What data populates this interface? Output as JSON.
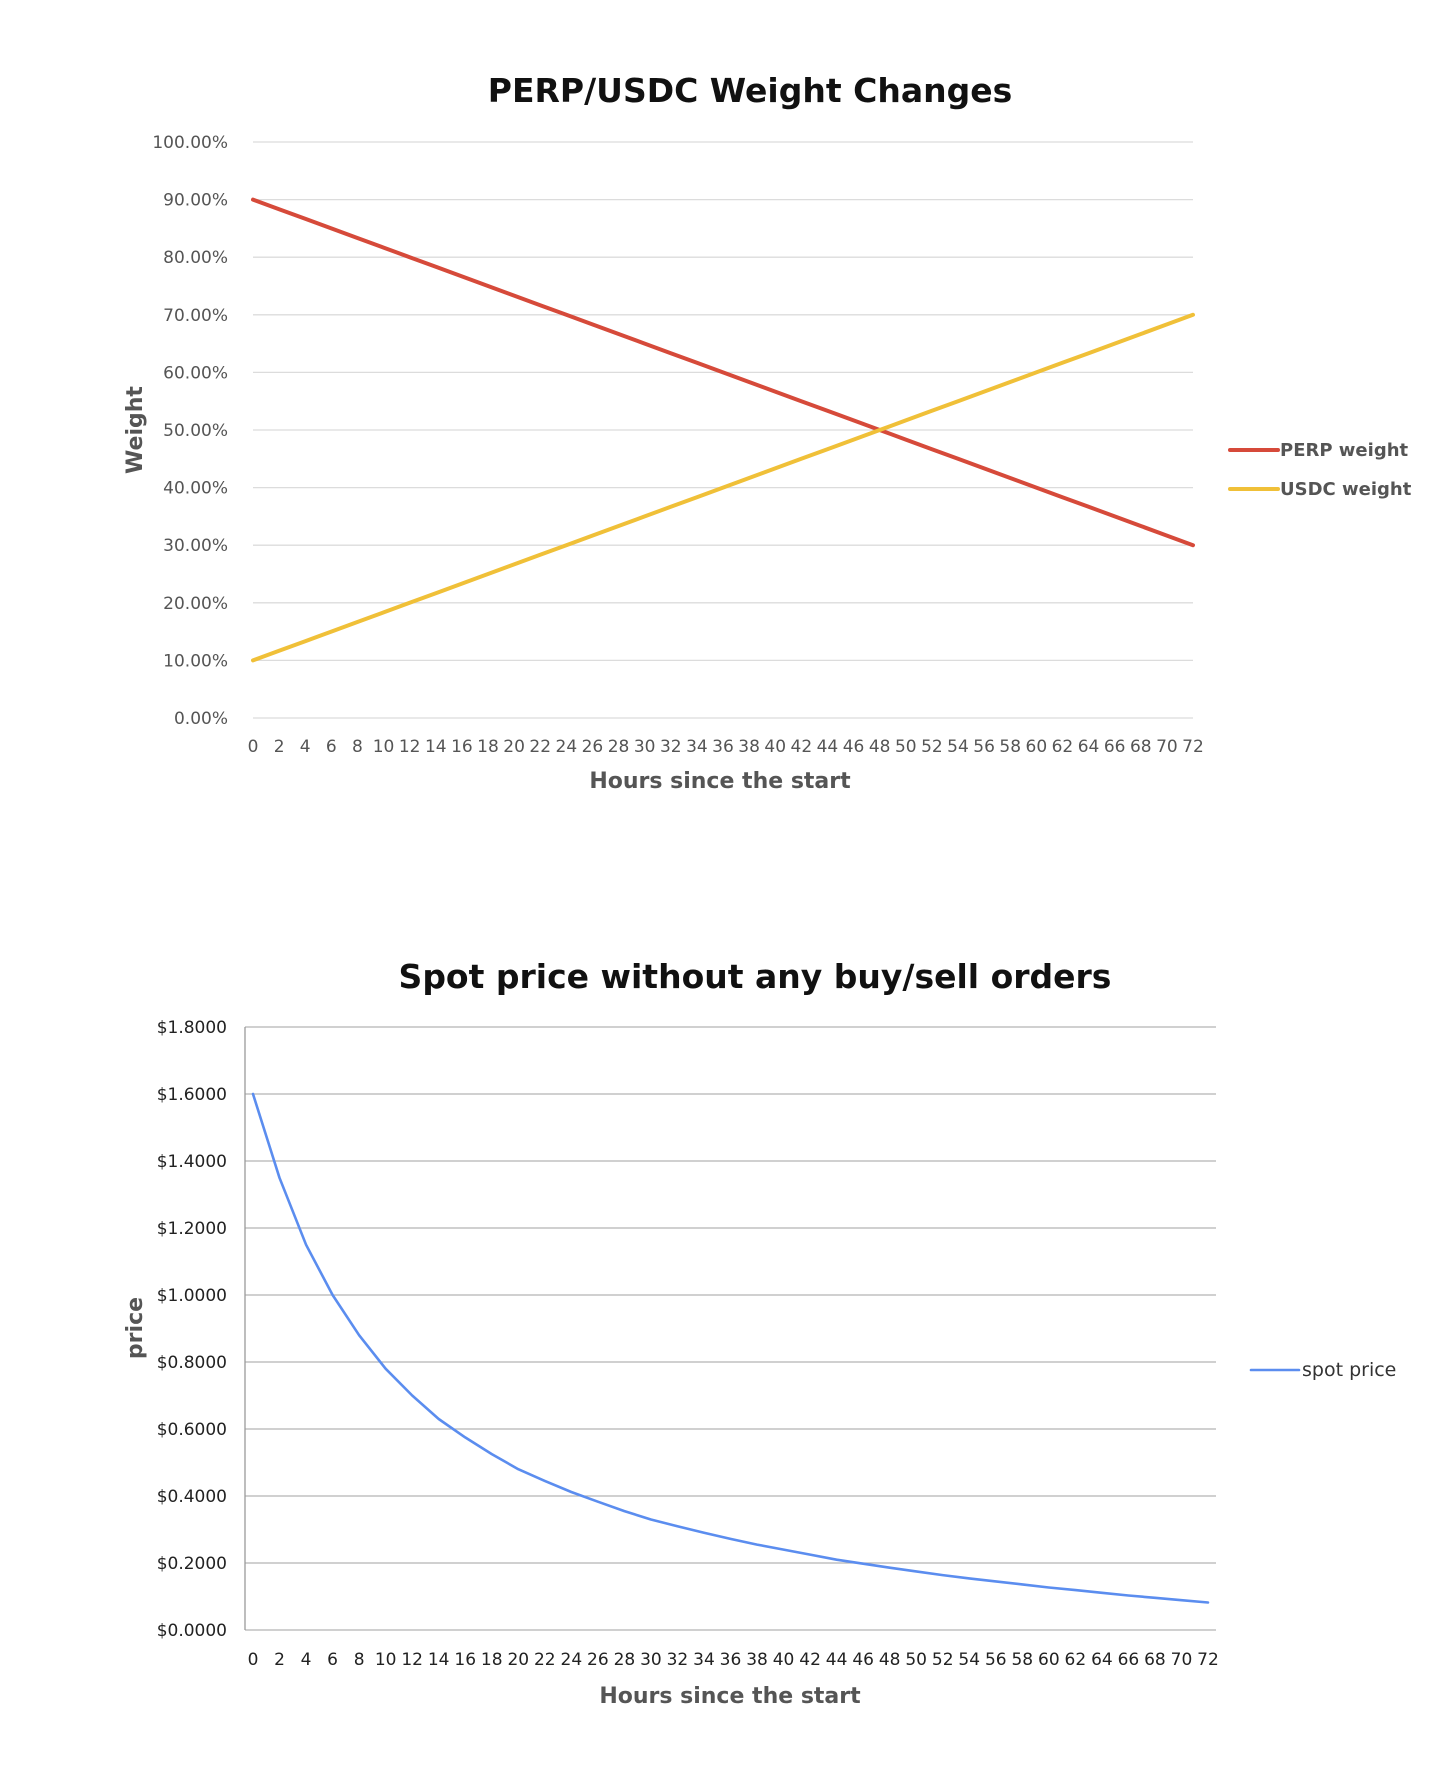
{
  "chart_data": [
    {
      "type": "line",
      "title": "PERP/USDC Weight Changes",
      "xlabel": "Hours since the start",
      "ylabel": "Weight",
      "x": [
        0,
        2,
        4,
        6,
        8,
        10,
        12,
        14,
        16,
        18,
        20,
        22,
        24,
        26,
        28,
        30,
        32,
        34,
        36,
        38,
        40,
        42,
        44,
        46,
        48,
        50,
        52,
        54,
        56,
        58,
        60,
        62,
        64,
        66,
        68,
        70,
        72
      ],
      "x_tick_labels": [
        "0",
        "2",
        "4",
        "6",
        "8",
        "10",
        "12",
        "14",
        "16",
        "18",
        "20",
        "22",
        "24",
        "26",
        "28",
        "30",
        "32",
        "34",
        "36",
        "38",
        "40",
        "42",
        "44",
        "46",
        "48",
        "50",
        "52",
        "54",
        "56",
        "58",
        "60",
        "62",
        "64",
        "66",
        "68",
        "70",
        "72"
      ],
      "y_tick_labels": [
        "0.00%",
        "10.00%",
        "20.00%",
        "30.00%",
        "40.00%",
        "50.00%",
        "60.00%",
        "70.00%",
        "80.00%",
        "90.00%",
        "100.00%"
      ],
      "ylim": [
        0,
        1
      ],
      "grid": true,
      "legend_position": "right",
      "series": [
        {
          "name": "PERP weight",
          "color": "#d64a3a",
          "values": [
            0.9,
            0.8833,
            0.8667,
            0.85,
            0.8333,
            0.8167,
            0.8,
            0.7833,
            0.7667,
            0.75,
            0.7333,
            0.7167,
            0.7,
            0.6833,
            0.6667,
            0.65,
            0.6333,
            0.6167,
            0.6,
            0.5833,
            0.5667,
            0.55,
            0.5333,
            0.5167,
            0.5,
            0.4833,
            0.4667,
            0.45,
            0.4333,
            0.4167,
            0.4,
            0.3833,
            0.3667,
            0.35,
            0.3333,
            0.3167,
            0.3
          ]
        },
        {
          "name": "USDC weight",
          "color": "#f0c038",
          "values": [
            0.1,
            0.1167,
            0.1333,
            0.15,
            0.1667,
            0.1833,
            0.2,
            0.2167,
            0.2333,
            0.25,
            0.2667,
            0.2833,
            0.3,
            0.3167,
            0.3333,
            0.35,
            0.3667,
            0.3833,
            0.4,
            0.4167,
            0.4333,
            0.45,
            0.4667,
            0.4833,
            0.5,
            0.5167,
            0.5333,
            0.55,
            0.5667,
            0.5833,
            0.6,
            0.6167,
            0.6333,
            0.65,
            0.6667,
            0.6833,
            0.7
          ]
        }
      ]
    },
    {
      "type": "line",
      "title": "Spot price without any buy/sell orders",
      "xlabel": "Hours since the start",
      "ylabel": "price",
      "x": [
        0,
        2,
        4,
        6,
        8,
        10,
        12,
        14,
        16,
        18,
        20,
        22,
        24,
        26,
        28,
        30,
        32,
        34,
        36,
        38,
        40,
        42,
        44,
        46,
        48,
        50,
        52,
        54,
        56,
        58,
        60,
        62,
        64,
        66,
        68,
        70,
        72
      ],
      "x_tick_labels": [
        "0",
        "2",
        "4",
        "6",
        "8",
        "10",
        "12",
        "14",
        "16",
        "18",
        "20",
        "22",
        "24",
        "26",
        "28",
        "30",
        "32",
        "34",
        "36",
        "38",
        "40",
        "42",
        "44",
        "46",
        "48",
        "50",
        "52",
        "54",
        "56",
        "58",
        "60",
        "62",
        "64",
        "66",
        "68",
        "70",
        "72"
      ],
      "y_tick_labels": [
        "$0.0000",
        "$0.2000",
        "$0.4000",
        "$0.6000",
        "$0.8000",
        "$1.0000",
        "$1.2000",
        "$1.4000",
        "$1.6000",
        "$1.8000"
      ],
      "ylim": [
        0,
        1.8
      ],
      "grid": true,
      "legend_position": "right",
      "series": [
        {
          "name": "spot price",
          "color": "#5b8def",
          "values": [
            1.6,
            1.35,
            1.15,
            1.0,
            0.88,
            0.78,
            0.7,
            0.63,
            0.575,
            0.525,
            0.48,
            0.445,
            0.412,
            0.383,
            0.355,
            0.33,
            0.31,
            0.29,
            0.272,
            0.255,
            0.24,
            0.225,
            0.21,
            0.198,
            0.186,
            0.175,
            0.164,
            0.154,
            0.145,
            0.136,
            0.127,
            0.119,
            0.111,
            0.103,
            0.096,
            0.089,
            0.082
          ]
        }
      ]
    }
  ]
}
